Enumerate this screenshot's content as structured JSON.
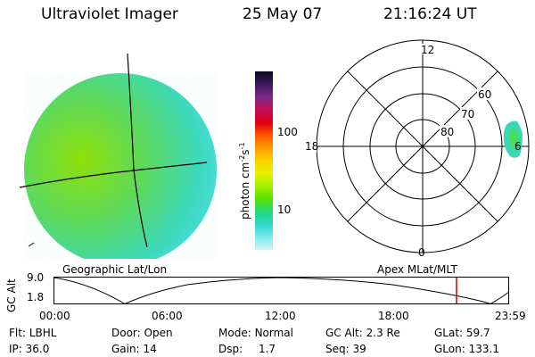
{
  "header": {
    "title": "Ultraviolet Imager",
    "date": "25 May 07",
    "time": "21:16:24 UT"
  },
  "colorbar": {
    "unit_label": "photon cm",
    "unit_exp1": "-2",
    "unit_s": "s",
    "unit_exp2": "-1",
    "tick_high": "100",
    "tick_low": "10",
    "colors": [
      "#0a0a1e",
      "#3a1a5a",
      "#7a2a8a",
      "#c01060",
      "#e00010",
      "#ff5a00",
      "#ff9c00",
      "#ffd200",
      "#e6f000",
      "#a8f000",
      "#5ae000",
      "#20d880",
      "#30d8d0",
      "#80e8f0",
      "#d0f4f8"
    ]
  },
  "polar": {
    "mlt_labels": {
      "top": "12",
      "left": "18",
      "right": "6",
      "bottom": "0"
    },
    "lat_labels": [
      "60",
      "70",
      "80"
    ]
  },
  "projection_labels": {
    "left": "Geographic Lat/Lon",
    "right": "Apex MLat/MLT"
  },
  "alt_plot": {
    "ylabel": "GC Alt",
    "ytick_high": "9.0",
    "ytick_low": "1.8",
    "xticks": [
      "00:00",
      "06:00",
      "12:00",
      "18:00",
      "23:59"
    ],
    "current_marker_color": "#cc0000"
  },
  "info": {
    "row1": [
      {
        "label": "Flt:",
        "value": "LBHL"
      },
      {
        "label": "Door:",
        "value": "Open"
      },
      {
        "label": "Mode:",
        "value": "Normal"
      },
      {
        "label": "GC Alt:",
        "value": "2.3 Re"
      },
      {
        "label": "GLat:",
        "value": "59.7"
      }
    ],
    "row2": [
      {
        "label": "IP:",
        "value": "36.0"
      },
      {
        "label": "Gain:",
        "value": "14"
      },
      {
        "label": "Dsp:",
        "value": "1.7"
      },
      {
        "label": "Seq:",
        "value": "39"
      },
      {
        "label": "GLon:",
        "value": "133.1"
      }
    ]
  }
}
